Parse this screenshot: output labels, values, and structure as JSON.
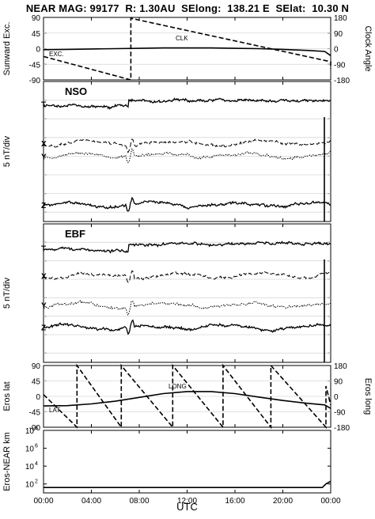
{
  "title": "NEAR MAG: 99177  R: 1.30AU  SElong:  138.21 E  SElat:  10.30 N",
  "chart_data": [
    {
      "type": "line",
      "panel": "clock",
      "ylabel_left": "Sunward Exc.",
      "ylabel_right": "Clock Angle",
      "left_ticks": [
        "90",
        "45",
        "0",
        "-45",
        "-90"
      ],
      "right_ticks": [
        "180",
        "90",
        "0",
        "-90",
        "-180"
      ],
      "ylim_left": [
        -90,
        90
      ],
      "ylim_right": [
        -180,
        180
      ],
      "series": [
        {
          "name": "EXC.",
          "axis": "left",
          "style": "solid",
          "x": [
            0,
            2,
            4,
            6,
            8,
            10,
            12,
            14,
            16,
            18,
            20,
            22,
            23.5,
            24
          ],
          "y": [
            -3,
            -2,
            -1,
            0,
            1,
            2,
            2,
            2,
            1,
            0,
            -2,
            -5,
            -8,
            -20
          ]
        },
        {
          "name": "CLK",
          "axis": "right",
          "style": "dashed",
          "x": [
            0,
            7.3,
            7.3,
            24,
            24
          ],
          "y": [
            -45,
            -180,
            175,
            -75,
            -115
          ]
        }
      ]
    },
    {
      "type": "line",
      "panel": "NSO",
      "label": "NSO",
      "ylabel": "5 nT/div",
      "series": [
        {
          "name": "T",
          "level": 1.2,
          "style": "solid"
        },
        {
          "name": "X",
          "level": 3.3,
          "style": "dashed"
        },
        {
          "name": "Y",
          "level": 4.0,
          "style": "dotted"
        },
        {
          "name": "Z",
          "level": 6.6,
          "style": "solid"
        }
      ]
    },
    {
      "type": "line",
      "panel": "EBF",
      "label": "EBF",
      "ylabel": "5 nT/div",
      "series": [
        {
          "name": "T",
          "level": 1.3,
          "style": "solid"
        },
        {
          "name": "X",
          "level": 2.8,
          "style": "dashed"
        },
        {
          "name": "Y",
          "level": 4.4,
          "style": "dotted"
        },
        {
          "name": "Z",
          "level": 5.6,
          "style": "solid"
        }
      ]
    },
    {
      "type": "line",
      "panel": "eros",
      "ylabel_left": "Eros lat",
      "ylabel_right": "Eros long",
      "left_ticks": [
        "90",
        "45",
        "0",
        "-45",
        "-90"
      ],
      "right_ticks": [
        "180",
        "90",
        "0",
        "-90",
        "-180"
      ],
      "ylim_left": [
        -90,
        90
      ],
      "ylim_right": [
        -180,
        180
      ],
      "series": [
        {
          "name": "LAT",
          "axis": "left",
          "style": "solid",
          "x": [
            0,
            2,
            4,
            6,
            8,
            10,
            12,
            14,
            16,
            18,
            20,
            22,
            23.5,
            24
          ],
          "y": [
            -28,
            -27,
            -22,
            -14,
            -3,
            8,
            14,
            14,
            8,
            -2,
            -12,
            -20,
            -25,
            -35
          ]
        },
        {
          "name": "LONG",
          "axis": "right",
          "style": "dashed",
          "x": [
            0,
            2.8,
            2.8,
            6.5,
            6.5,
            10.8,
            10.8,
            15,
            15,
            19,
            19,
            23.6,
            23.6,
            24
          ],
          "y": [
            10,
            -180,
            180,
            -180,
            180,
            -180,
            180,
            -180,
            180,
            -180,
            180,
            -180,
            60,
            -50
          ]
        }
      ]
    },
    {
      "type": "line",
      "panel": "distance",
      "ylabel": "Eros-NEAR km",
      "yscale": "log",
      "ylim": [
        10,
        100000000.0
      ],
      "y_ticks": [
        "10",
        "10",
        "10",
        "10"
      ],
      "y_tick_exponents": [
        "8",
        "6",
        "4",
        "2"
      ],
      "series": [
        {
          "name": "distance",
          "style": "solid",
          "x": [
            0,
            23.3,
            23.6,
            24
          ],
          "y": [
            40,
            40,
            100,
            200
          ]
        }
      ]
    }
  ],
  "x_axis": {
    "ticks": [
      "00:00",
      "04:00",
      "08:00",
      "12:00",
      "16:00",
      "20:00",
      "00:00"
    ],
    "xlim": [
      0,
      24
    ],
    "xlabel": "UTC"
  }
}
